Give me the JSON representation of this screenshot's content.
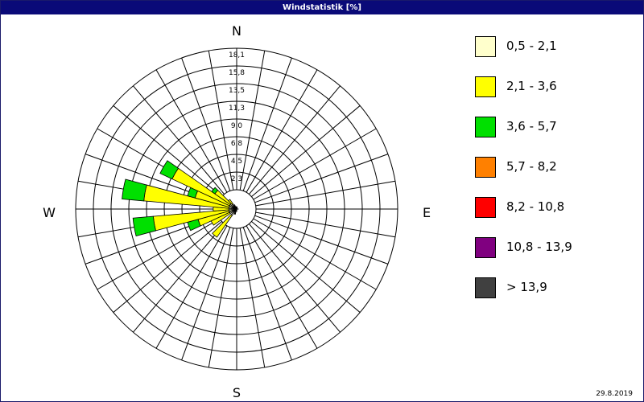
{
  "title": "Windstatistik [%]",
  "date": "29.8.2019",
  "chart_data": {
    "type": "wind-rose",
    "title": "Windstatistik [%]",
    "radial_ticks": [
      "2,3",
      "4,5",
      "6,8",
      "9,0",
      "11,3",
      "13,5",
      "15,8",
      "18,1"
    ],
    "radial_max": 18.1,
    "directions": {
      "N": "N",
      "E": "E",
      "S": "S",
      "W": "W"
    },
    "speed_classes": [
      {
        "label": "0,5 - 2,1",
        "color": "#ffffcc"
      },
      {
        "label": "2,1 - 3,6",
        "color": "#ffff00"
      },
      {
        "label": "3,6 - 5,7",
        "color": "#00e000"
      },
      {
        "label": "5,7 - 8,2",
        "color": "#ff8000"
      },
      {
        "label": "8,2 - 10,8",
        "color": "#ff0000"
      },
      {
        "label": "10,8 - 13,9",
        "color": "#800080"
      },
      {
        "label": "> 13,9",
        "color": "#404040"
      }
    ],
    "sectors": [
      {
        "angle": 0,
        "values": [
          0.3,
          0,
          0,
          0,
          0,
          0,
          0
        ]
      },
      {
        "angle": 10,
        "values": [
          0.2,
          0,
          0,
          0,
          0,
          0,
          0
        ]
      },
      {
        "angle": 20,
        "values": [
          0.2,
          0,
          0,
          0,
          0,
          0,
          0
        ]
      },
      {
        "angle": 90,
        "values": [
          0.2,
          0,
          0,
          0,
          0,
          0,
          0
        ]
      },
      {
        "angle": 180,
        "values": [
          0.3,
          0,
          0,
          0,
          0,
          0,
          0
        ]
      },
      {
        "angle": 200,
        "values": [
          0.6,
          0.1,
          0,
          0,
          0,
          0,
          0
        ]
      },
      {
        "angle": 220,
        "values": [
          1.0,
          3.4,
          0,
          0,
          0,
          0,
          0
        ]
      },
      {
        "angle": 240,
        "values": [
          1.0,
          2.6,
          0,
          0,
          0,
          0,
          0
        ]
      },
      {
        "angle": 250,
        "values": [
          1.0,
          4.1,
          1.4,
          0,
          0,
          0,
          0
        ]
      },
      {
        "angle": 260,
        "values": [
          1.0,
          9.7,
          2.6,
          0,
          0,
          0,
          0
        ]
      },
      {
        "angle": 270,
        "values": [
          1.0,
          2.0,
          0,
          0,
          0,
          0,
          0
        ]
      },
      {
        "angle": 280,
        "values": [
          1.0,
          10.9,
          2.8,
          0,
          0,
          0,
          0
        ]
      },
      {
        "angle": 290,
        "values": [
          1.0,
          4.5,
          1.0,
          0,
          0,
          0,
          0
        ]
      },
      {
        "angle": 300,
        "values": [
          1.0,
          8.1,
          1.7,
          0,
          0,
          0,
          0
        ]
      },
      {
        "angle": 310,
        "values": [
          1.0,
          2.4,
          0.5,
          0,
          0,
          0,
          0
        ]
      },
      {
        "angle": 320,
        "values": [
          0.8,
          0.7,
          0,
          0,
          0,
          0,
          0
        ]
      },
      {
        "angle": 330,
        "values": [
          0.6,
          0,
          0,
          0,
          0,
          0,
          0
        ]
      },
      {
        "angle": 350,
        "values": [
          0.3,
          0,
          0,
          0,
          0,
          0,
          0
        ]
      }
    ]
  }
}
